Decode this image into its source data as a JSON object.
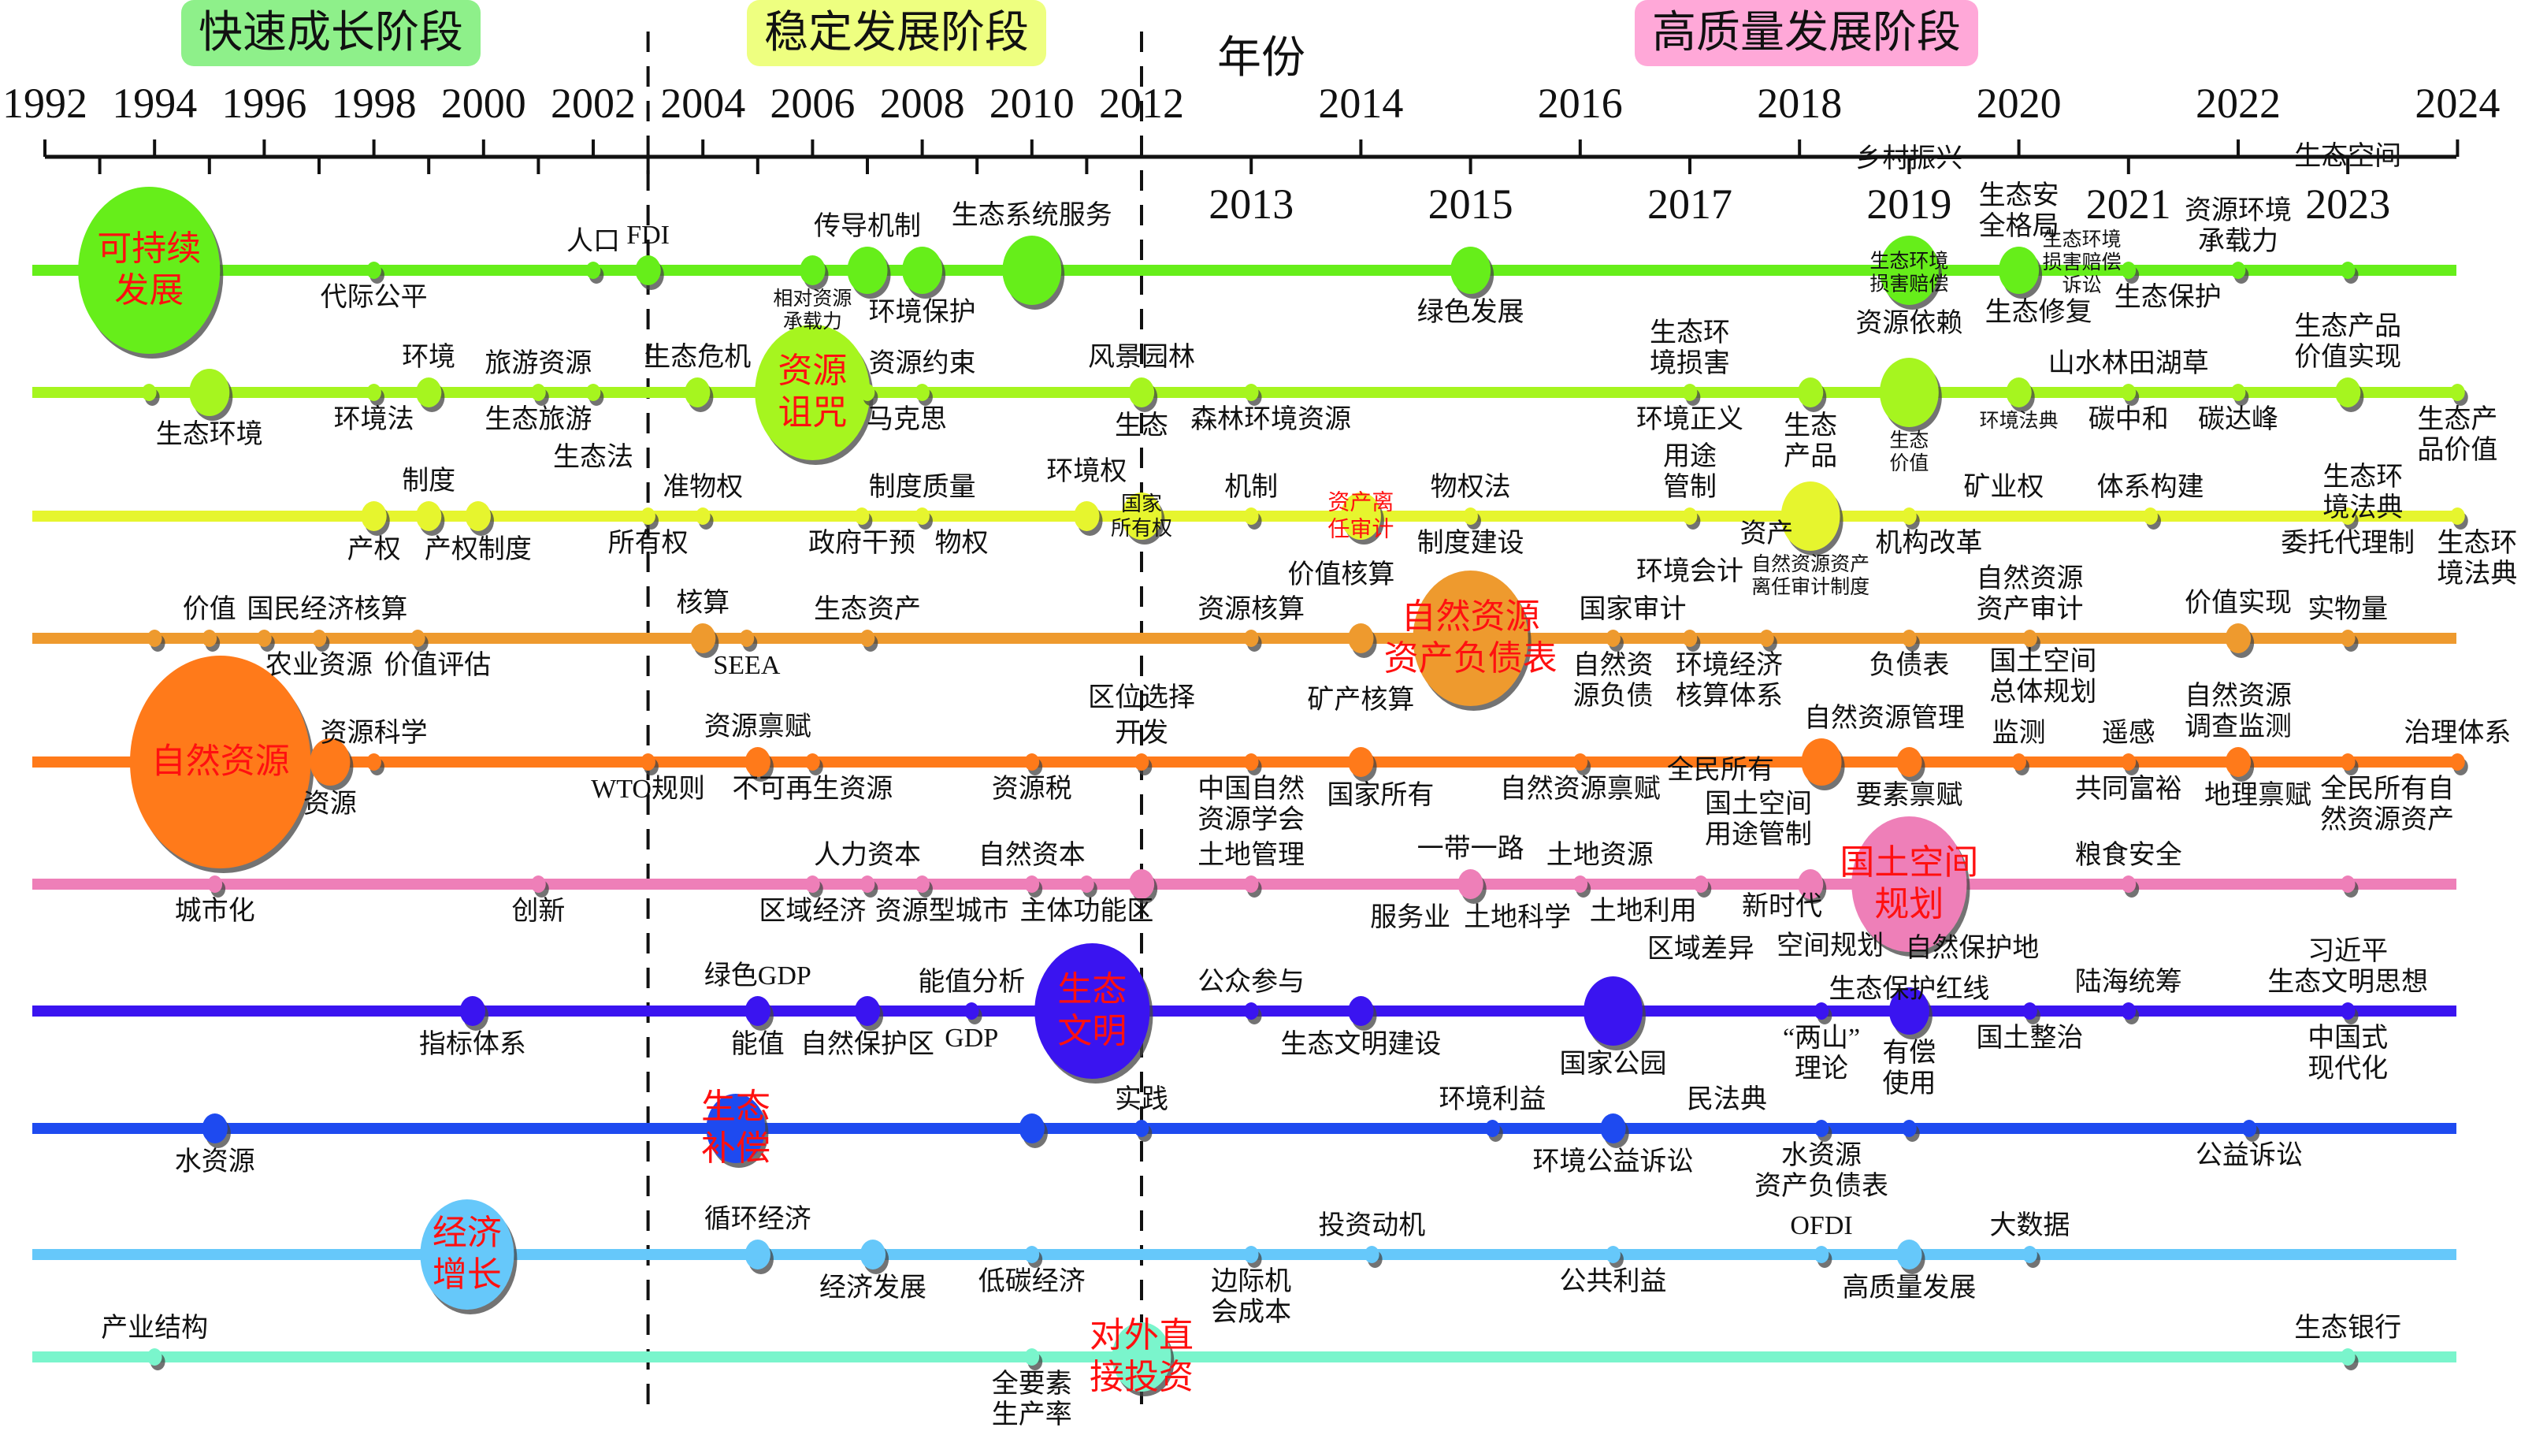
{
  "stages": [
    {
      "label": "快速成长阶段",
      "color": "#8ef08a"
    },
    {
      "label": "稳定发展阶段",
      "color": "#eeff80"
    },
    {
      "label": "高质量发展阶段",
      "color": "#ffa8d8"
    }
  ],
  "axis": {
    "title": "年份",
    "major_years": [
      "1992",
      "1994",
      "1996",
      "1998",
      "2000",
      "2002",
      "2004",
      "2006",
      "2008",
      "2010",
      "2012",
      "2014",
      "2016",
      "2018",
      "2020",
      "2022",
      "2024"
    ],
    "minor_years": [
      "2013",
      "2015",
      "2017",
      "2019",
      "2021",
      "2023"
    ],
    "stage_boundaries": [
      2003,
      2012
    ]
  },
  "rows": [
    {
      "color": "#66ee1a",
      "nodes": [
        {
          "year": 1993.9,
          "w": 7,
          "inside": "可持续\n发展"
        },
        {
          "year": 1998,
          "w": 1,
          "below": "代际公平"
        },
        {
          "year": 2002,
          "w": 1,
          "above": "人口"
        },
        {
          "year": 2003,
          "w": 2,
          "above": "FDI"
        },
        {
          "year": 2006,
          "w": 2,
          "below": "相对资源\n承载力",
          "small": true
        },
        {
          "year": 2007,
          "w": 3,
          "above": "传导机制"
        },
        {
          "year": 2008,
          "w": 3,
          "below": "环境保护"
        },
        {
          "year": 2010,
          "w": 4,
          "above": "生态系统服务"
        },
        {
          "year": 2015,
          "w": 3,
          "below": "绿色发展"
        },
        {
          "year": 2019,
          "w": 4,
          "above": "乡村振兴",
          "below": "资源依赖"
        },
        {
          "year": 2020,
          "w": 3,
          "above": "生态安\n全格局",
          "below": "生态修复"
        },
        {
          "year": 2021,
          "w": 1,
          "below": "生态保护"
        },
        {
          "year": 2022,
          "w": 1,
          "above": "资源环境\n承载力"
        },
        {
          "year": 2023,
          "w": 1,
          "above": "生态空间"
        }
      ]
    },
    {
      "color": "#a6f51f",
      "nodes": [
        {
          "year": 1993.9,
          "w": 1
        },
        {
          "year": 1995,
          "w": 3,
          "below": "生态环境"
        },
        {
          "year": 1998,
          "w": 1,
          "below": "环境法"
        },
        {
          "year": 1999,
          "w": 2,
          "above": "环境"
        },
        {
          "year": 2001,
          "w": 1,
          "above": "旅游资源",
          "below": "生态旅游"
        },
        {
          "year": 2002,
          "w": 1,
          "below": "生态法"
        },
        {
          "year": 2003.9,
          "w": 2,
          "above": "生态危机"
        },
        {
          "year": 2006,
          "w": 6,
          "inside": "资源\n诅咒"
        },
        {
          "year": 2007,
          "w": 1,
          "below": "马克思"
        },
        {
          "year": 2008,
          "w": 1,
          "above": "资源约束"
        },
        {
          "year": 2012,
          "w": 2,
          "above": "风景园林",
          "below": "生态"
        },
        {
          "year": 2013,
          "w": 1,
          "below": "森林环境资源"
        },
        {
          "year": 2017,
          "w": 1,
          "above": "生态环\n境损害",
          "below": "环境正义"
        },
        {
          "year": 2018.1,
          "w": 2,
          "below": "生态\n产品"
        },
        {
          "year": 2019,
          "w": 4,
          "above": "生态环境\n损害赔偿",
          "below": "生态\n价值",
          "small": true
        },
        {
          "year": 2020,
          "w": 2,
          "above": "生态环境\n损害赔偿\n诉讼",
          "below": "环境法典",
          "small": true
        },
        {
          "year": 2021,
          "w": 1,
          "above": "山水林田湖草",
          "below": "碳中和"
        },
        {
          "year": 2022,
          "w": 1,
          "below": "碳达峰"
        },
        {
          "year": 2023,
          "w": 2,
          "above": "生态产品\n价值实现"
        },
        {
          "year": 2024,
          "w": 1,
          "below": "生态产\n品价值"
        }
      ]
    },
    {
      "color": "#e6f52e",
      "nodes": [
        {
          "year": 1998,
          "w": 2,
          "below": "产权"
        },
        {
          "year": 1999,
          "w": 2,
          "above": "制度"
        },
        {
          "year": 1999.9,
          "w": 2,
          "below": "产权制度"
        },
        {
          "year": 2003,
          "w": 1,
          "below": "所有权"
        },
        {
          "year": 2004,
          "w": 1,
          "above": "准物权"
        },
        {
          "year": 2006.9,
          "w": 1,
          "below": "政府干预"
        },
        {
          "year": 2008,
          "w": 1,
          "above": "制度质量",
          "below": "物权"
        },
        {
          "year": 2011,
          "w": 2,
          "above": "环境权"
        },
        {
          "year": 2012,
          "w": 3,
          "inside": "国家\n所有权",
          "dark": true
        },
        {
          "year": 2013,
          "w": 1,
          "above": "机制"
        },
        {
          "year": 2014,
          "w": 3,
          "inside": "资产离\n任审计",
          "mid": true
        },
        {
          "year": 2015,
          "w": 1,
          "above": "物权法",
          "below": "制度建设"
        },
        {
          "year": 2017,
          "w": 1,
          "above": "用途\n管制"
        },
        {
          "year": 2018.1,
          "w": 4,
          "below": "自然资源资产\n离任审计制度",
          "small": true
        },
        {
          "year": 2019,
          "w": 1,
          "above": "矿业权",
          "below": "机构改革"
        },
        {
          "year": 2021.2,
          "w": 1,
          "above": "体系构建"
        },
        {
          "year": 2023,
          "w": 1,
          "below": "委托代理制"
        },
        {
          "year": 2024,
          "w": 1,
          "below": "生态环\n境法典"
        }
      ]
    },
    {
      "color": "#ee9a2e",
      "nodes": [
        {
          "year": 1994,
          "w": 1
        },
        {
          "year": 1995,
          "w": 1,
          "above": "价值"
        },
        {
          "year": 1996,
          "w": 1,
          "above": "国民经济核算"
        },
        {
          "year": 1997,
          "w": 1,
          "below": "农业资源"
        },
        {
          "year": 1998.8,
          "w": 1,
          "below": "价值评估"
        },
        {
          "year": 2004,
          "w": 2,
          "above": "核算"
        },
        {
          "year": 2004.8,
          "w": 1,
          "below": "SEEA"
        },
        {
          "year": 2007,
          "w": 1,
          "above": "生态资产"
        },
        {
          "year": 2013,
          "w": 1,
          "above": "资源核算"
        },
        {
          "year": 2014,
          "w": 2,
          "above": "价值核算",
          "below": "矿产核算"
        },
        {
          "year": 2015,
          "w": 6,
          "inside": "自然资源\n资产负债表"
        },
        {
          "year": 2016.3,
          "w": 1,
          "above": "国家审计",
          "below": "自然资\n源负债"
        },
        {
          "year": 2017,
          "w": 1,
          "above": "环境会计",
          "below": "环境经济\n核算体系"
        },
        {
          "year": 2017.7,
          "w": 1,
          "above": "资产"
        },
        {
          "year": 2019,
          "w": 1,
          "below": "负债表"
        },
        {
          "year": 2020.1,
          "w": 1,
          "above": "自然资源\n资产审计"
        },
        {
          "year": 2022,
          "w": 2,
          "above": "价值实现"
        },
        {
          "year": 2023,
          "w": 1,
          "above": "实物量"
        },
        {
          "year": 2024,
          "w": 0,
          "above": "生态环\n境法典"
        }
      ]
    },
    {
      "color": "#ff7a1a",
      "nodes": [
        {
          "year": 1995.2,
          "w": 8,
          "inside": "自然资源"
        },
        {
          "year": 1997.2,
          "w": 3,
          "below": "资源"
        },
        {
          "year": 1998,
          "w": 1,
          "above": "资源科学"
        },
        {
          "year": 2003,
          "w": 1,
          "below": "WTO规则"
        },
        {
          "year": 2005,
          "w": 2,
          "above": "资源禀赋"
        },
        {
          "year": 2006,
          "w": 1,
          "below": "不可再生资源"
        },
        {
          "year": 2010,
          "w": 1,
          "below": "资源税"
        },
        {
          "year": 2012,
          "w": 1,
          "above": "开发"
        },
        {
          "year": 2013,
          "w": 1,
          "below": "中国自然\n资源学会"
        },
        {
          "year": 2014,
          "w": 2,
          "below": "国家所有"
        },
        {
          "year": 2016,
          "w": 1,
          "below": "自然资源禀赋"
        },
        {
          "year": 2018.2,
          "w": 3,
          "above": "自然资源管理",
          "below": "国土空间\n用途管制"
        },
        {
          "year": 2019,
          "w": 2,
          "below": "要素禀赋"
        },
        {
          "year": 2020,
          "w": 1,
          "above": "监测"
        },
        {
          "year": 2021,
          "w": 1,
          "above": "遥感",
          "below": "共同富裕"
        },
        {
          "year": 2022,
          "w": 2,
          "above": "自然资源\n调查监测",
          "below": "地理禀赋"
        },
        {
          "year": 2023,
          "w": 1,
          "below": "全民所有自\n然资源资产"
        },
        {
          "year": 2024,
          "w": 1,
          "above": "治理体系"
        }
      ]
    },
    {
      "color": "#ee7fb8",
      "nodes": [
        {
          "year": 1995.1,
          "w": 1,
          "below": "城市化"
        },
        {
          "year": 2001,
          "w": 1,
          "below": "创新"
        },
        {
          "year": 2006,
          "w": 1,
          "below": "区域经济"
        },
        {
          "year": 2007,
          "w": 1,
          "above": "人力资本"
        },
        {
          "year": 2008,
          "w": 1,
          "below": "资源型城市"
        },
        {
          "year": 2010,
          "w": 1,
          "above": "自然资本"
        },
        {
          "year": 2011,
          "w": 1,
          "below": "主体功能区"
        },
        {
          "year": 2012,
          "w": 2,
          "above": "区位选择"
        },
        {
          "year": 2013,
          "w": 1,
          "above": "土地管理"
        },
        {
          "year": 2015,
          "w": 2,
          "above": "一带一路",
          "below": "服务业  土地科学"
        },
        {
          "year": 2016,
          "w": 1,
          "above": "土地资源",
          "below": "土地利用"
        },
        {
          "year": 2017.1,
          "w": 1,
          "above": "全民所有",
          "below": "区域差异"
        },
        {
          "year": 2018.1,
          "w": 2,
          "below": "空间规划"
        },
        {
          "year": 2019,
          "w": 6,
          "inside": "国土空间\n规划",
          "above": "国土空间\n总体规划",
          "below": "生态保护红线"
        },
        {
          "year": 2021,
          "w": 1,
          "above": "粮食安全"
        },
        {
          "year": 2023,
          "w": 1
        }
      ]
    },
    {
      "color": "#3a14f0",
      "nodes": [
        {
          "year": 1999.8,
          "w": 2,
          "below": "指标体系"
        },
        {
          "year": 2005,
          "w": 2,
          "above": "绿色GDP",
          "below": "能值"
        },
        {
          "year": 2007,
          "w": 2,
          "below": "自然保护区"
        },
        {
          "year": 2008.9,
          "w": 1,
          "above": "能值分析",
          "below": "GDP"
        },
        {
          "year": 2011.1,
          "w": 6,
          "inside": "生态\n文明"
        },
        {
          "year": 2013,
          "w": 1,
          "above": "公众参与"
        },
        {
          "year": 2014,
          "w": 2,
          "below": "生态文明建设"
        },
        {
          "year": 2016.3,
          "w": 4,
          "below": "国家公园"
        },
        {
          "year": 2018.2,
          "w": 1,
          "above": "新时代",
          "below": "“两山”\n理论"
        },
        {
          "year": 2019,
          "w": 3,
          "above": "自然保护地",
          "below": "有偿\n使用"
        },
        {
          "year": 2020.1,
          "w": 1,
          "below": "国土整治"
        },
        {
          "year": 2021,
          "w": 1,
          "above": "陆海统筹"
        },
        {
          "year": 2023,
          "w": 1,
          "above": "习近平\n生态文明思想",
          "below": "中国式\n现代化"
        }
      ]
    },
    {
      "color": "#1e4af0",
      "nodes": [
        {
          "year": 1995.1,
          "w": 2,
          "below": "水资源"
        },
        {
          "year": 2004.6,
          "w": 4,
          "inside": "生态\n补偿"
        },
        {
          "year": 2010,
          "w": 2
        },
        {
          "year": 2012,
          "w": 1,
          "above": "实践"
        },
        {
          "year": 2015.2,
          "w": 1,
          "above": "环境利益"
        },
        {
          "year": 2016.3,
          "w": 2,
          "below": "环境公益诉讼"
        },
        {
          "year": 2018.2,
          "w": 1,
          "above": "民法典",
          "below": "水资源\n资产负债表"
        },
        {
          "year": 2019,
          "w": 1
        },
        {
          "year": 2022.1,
          "w": 1,
          "below": "公益诉讼"
        }
      ]
    },
    {
      "color": "#66c8fa",
      "nodes": [
        {
          "year": 1999.7,
          "w": 5,
          "inside": "经济\n增长"
        },
        {
          "year": 2005,
          "w": 2,
          "above": "循环经济"
        },
        {
          "year": 2007.1,
          "w": 2,
          "below": "经济发展"
        },
        {
          "year": 2010,
          "w": 1,
          "below": "低碳经济"
        },
        {
          "year": 2013,
          "w": 1,
          "below": "边际机\n会成本"
        },
        {
          "year": 2014.1,
          "w": 1,
          "above": "投资动机"
        },
        {
          "year": 2016.3,
          "w": 1,
          "below": "公共利益"
        },
        {
          "year": 2018.2,
          "w": 1,
          "above": "OFDI"
        },
        {
          "year": 2019,
          "w": 2,
          "below": "高质量发展"
        },
        {
          "year": 2020.1,
          "w": 1,
          "above": "大数据"
        }
      ]
    },
    {
      "color": "#7af5cc",
      "nodes": [
        {
          "year": 1994,
          "w": 1,
          "above": "产业结构"
        },
        {
          "year": 2010,
          "w": 1,
          "below": "全要素\n生产率"
        },
        {
          "year": 2012,
          "w": 4,
          "inside": "对外直\n接投资"
        },
        {
          "year": 2023,
          "w": 1,
          "above": "生态银行"
        }
      ]
    }
  ]
}
